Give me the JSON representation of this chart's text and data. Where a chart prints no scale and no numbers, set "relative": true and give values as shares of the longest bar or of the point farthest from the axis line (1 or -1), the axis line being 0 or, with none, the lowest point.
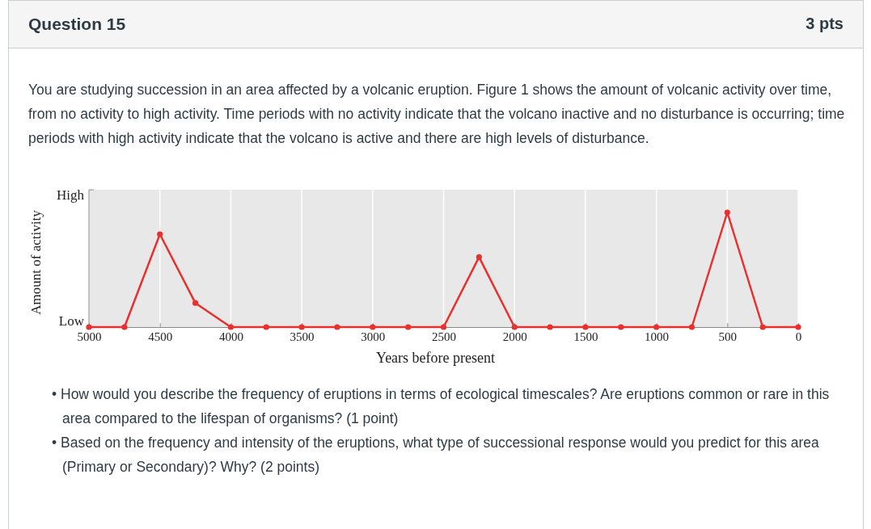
{
  "chart_data": {
    "type": "line",
    "title": "Question 15",
    "subtitle": "You are studying succession in an area affected by a volcanic eruption. Figure 1 shows the amount of volcanic activity over time, from no activity to high activity. Time periods with no activity indicate that the volcano inactive and no disturbance is occurring; time periods with high activity indicate that the volcano is active and there are high levels of disturbance.",
    "annotations": [
      "3 pts",
      "High",
      "Low",
      "• How would you describe the frequency of eruptions in terms of ecological timescales? Are eruptions common or rare in this area compared to the lifespan of organisms? (1 point)",
      "• Based on the frequency and intensity of the eruptions, what type of successional response would you predict for this area (Primary or Secondary)? Why? (2 points)"
    ],
    "xlabel": "Years before present",
    "ylabel": "Amount of activity",
    "x": [
      5000,
      4750,
      4500,
      4250,
      4000,
      3750,
      3500,
      3250,
      3000,
      2750,
      2500,
      2250,
      2000,
      1750,
      1500,
      1250,
      1000,
      750,
      500,
      250,
      0
    ],
    "series": [
      {
        "color": "#e8312f",
        "values": [
          0,
          0,
          0.81,
          0.21,
          0,
          0,
          0,
          0,
          0,
          0,
          0,
          0.61,
          0,
          0,
          0,
          0,
          0,
          0,
          1,
          0,
          0
        ]
      }
    ],
    "relative": true,
    "xlim": [
      5000,
      0
    ],
    "xticks": [
      5000,
      4500,
      4000,
      3500,
      3000,
      2500,
      2000,
      1500,
      1000,
      500,
      0
    ],
    "grid": "x",
    "marker": "circle",
    "line_style": "solid"
  }
}
